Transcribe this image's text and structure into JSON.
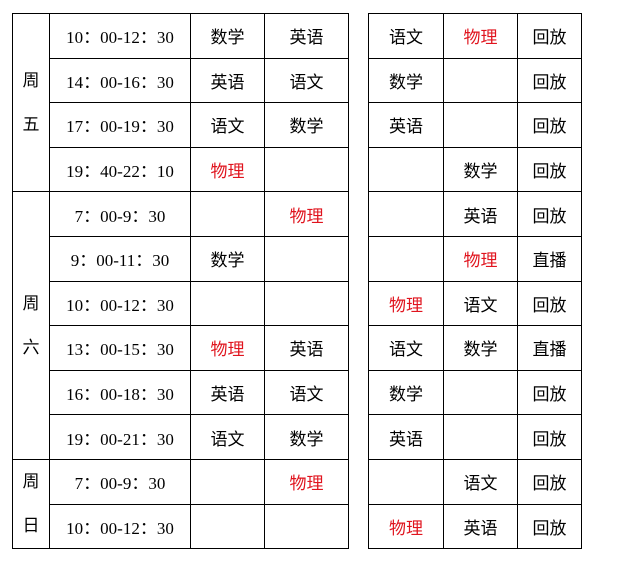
{
  "highlight_subject": "物理",
  "colors": {
    "highlight": "#e0141e",
    "text": "#000000",
    "border": "#000000"
  },
  "days": [
    {
      "label": "周五",
      "rows": 4
    },
    {
      "label": "周六",
      "rows": 6
    },
    {
      "label": "周日",
      "rows": 2
    }
  ],
  "rows": [
    {
      "time": "10：00-12：30",
      "a": "数学",
      "b": "英语",
      "c": "语文",
      "d": "物理",
      "mode": "回放"
    },
    {
      "time": "14：00-16：30",
      "a": "英语",
      "b": "语文",
      "c": "数学",
      "d": "",
      "mode": "回放"
    },
    {
      "time": "17：00-19：30",
      "a": "语文",
      "b": "数学",
      "c": "英语",
      "d": "",
      "mode": "回放"
    },
    {
      "time": "19：40-22：10",
      "a": "物理",
      "b": "",
      "c": "",
      "d": "数学",
      "mode": "回放"
    },
    {
      "time": "7：00-9：30",
      "a": "",
      "b": "物理",
      "c": "",
      "d": "英语",
      "mode": "回放"
    },
    {
      "time": "9：00-11：30",
      "a": "数学",
      "b": "",
      "c": "",
      "d": "物理",
      "mode": "直播"
    },
    {
      "time": "10：00-12：30",
      "a": "",
      "b": "",
      "c": "物理",
      "d": "语文",
      "mode": "回放"
    },
    {
      "time": "13：00-15：30",
      "a": "物理",
      "b": "英语",
      "c": "语文",
      "d": "数学",
      "mode": "直播"
    },
    {
      "time": "16：00-18：30",
      "a": "英语",
      "b": "语文",
      "c": "数学",
      "d": "",
      "mode": "回放"
    },
    {
      "time": "19：00-21：30",
      "a": "语文",
      "b": "数学",
      "c": "英语",
      "d": "",
      "mode": "回放"
    },
    {
      "time": "7：00-9：30",
      "a": "",
      "b": "物理",
      "c": "",
      "d": "语文",
      "mode": "回放"
    },
    {
      "time": "10：00-12：30",
      "a": "",
      "b": "",
      "c": "物理",
      "d": "英语",
      "mode": "回放"
    }
  ]
}
